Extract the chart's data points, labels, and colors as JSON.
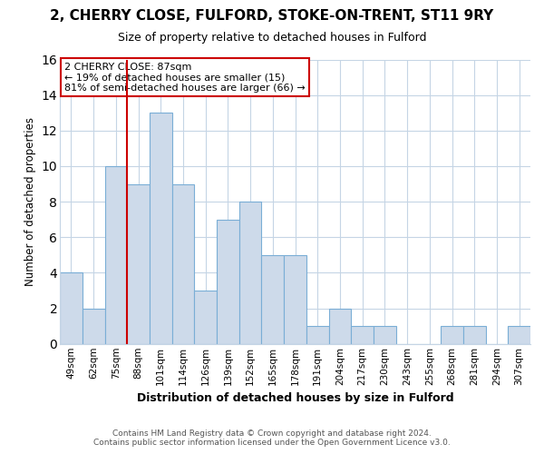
{
  "title": "2, CHERRY CLOSE, FULFORD, STOKE-ON-TRENT, ST11 9RY",
  "subtitle": "Size of property relative to detached houses in Fulford",
  "xlabel": "Distribution of detached houses by size in Fulford",
  "ylabel": "Number of detached properties",
  "footer_line1": "Contains HM Land Registry data © Crown copyright and database right 2024.",
  "footer_line2": "Contains public sector information licensed under the Open Government Licence v3.0.",
  "bin_labels": [
    "49sqm",
    "62sqm",
    "75sqm",
    "88sqm",
    "101sqm",
    "114sqm",
    "126sqm",
    "139sqm",
    "152sqm",
    "165sqm",
    "178sqm",
    "191sqm",
    "204sqm",
    "217sqm",
    "230sqm",
    "243sqm",
    "255sqm",
    "268sqm",
    "281sqm",
    "294sqm",
    "307sqm"
  ],
  "counts": [
    4,
    2,
    10,
    9,
    13,
    9,
    3,
    7,
    8,
    5,
    5,
    1,
    2,
    1,
    1,
    0,
    0,
    1,
    1,
    0,
    1
  ],
  "bar_color": "#cddaea",
  "bar_edge_color": "#7aaed6",
  "annotation_text": "2 CHERRY CLOSE: 87sqm\n← 19% of detached houses are smaller (15)\n81% of semi-detached houses are larger (66) →",
  "annotation_box_facecolor": "white",
  "annotation_box_edgecolor": "#cc0000",
  "vline_index": 3,
  "vline_color": "#cc0000",
  "ylim": [
    0,
    16
  ],
  "yticks": [
    0,
    2,
    4,
    6,
    8,
    10,
    12,
    14,
    16
  ],
  "bg_color": "#ffffff",
  "plot_bg_color": "#ffffff",
  "grid_color": "#c5d5e5",
  "title_fontsize": 11,
  "subtitle_fontsize": 9,
  "ylabel_fontsize": 8.5,
  "xlabel_fontsize": 9,
  "tick_fontsize": 7.5,
  "footer_fontsize": 6.5,
  "annot_fontsize": 8
}
